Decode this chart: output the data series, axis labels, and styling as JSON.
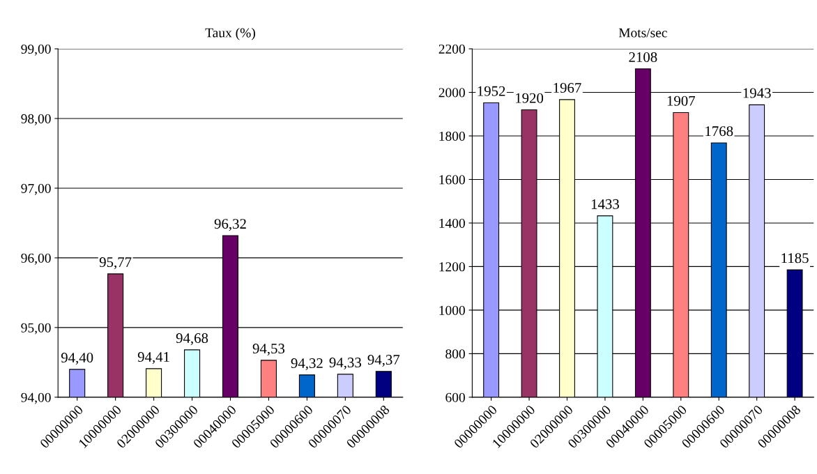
{
  "chart_data": [
    {
      "type": "bar",
      "title": "Taux (%)",
      "categories": [
        "00000000",
        "10000000",
        "02000000",
        "00300000",
        "00040000",
        "00005000",
        "00000600",
        "00000070",
        "00000008"
      ],
      "values": [
        94.4,
        95.77,
        94.41,
        94.68,
        96.32,
        94.53,
        94.32,
        94.33,
        94.37
      ],
      "value_labels": [
        "94,40",
        "95,77",
        "94,41",
        "94,68",
        "96,32",
        "94,53",
        "94,32",
        "94,33",
        "94,37"
      ],
      "colors": [
        "#9999ff",
        "#993366",
        "#ffffcc",
        "#ccffff",
        "#660066",
        "#ff8080",
        "#0066cc",
        "#ccccff",
        "#000080"
      ],
      "ylim": [
        94,
        99
      ],
      "yticks": [
        {
          "value": 94,
          "label": "94,00"
        },
        {
          "value": 95,
          "label": "95,00"
        },
        {
          "value": 96,
          "label": "96,00"
        },
        {
          "value": 97,
          "label": "97,00"
        },
        {
          "value": 98,
          "label": "98,00"
        },
        {
          "value": 99,
          "label": "99,00"
        }
      ],
      "grid": "y"
    },
    {
      "type": "bar",
      "title": "Mots/sec",
      "categories": [
        "00000000",
        "10000000",
        "02000000",
        "00300000",
        "00040000",
        "00005000",
        "00000600",
        "00000070",
        "00000008"
      ],
      "values": [
        1952,
        1920,
        1967,
        1433,
        2108,
        1907,
        1768,
        1943,
        1185
      ],
      "data_labels": true,
      "colors": [
        "#9999ff",
        "#993366",
        "#ffffcc",
        "#ccffff",
        "#660066",
        "#ff8080",
        "#0066cc",
        "#ccccff",
        "#000080"
      ],
      "ylim": [
        600,
        2200
      ],
      "yticks": [
        600,
        800,
        1000,
        1200,
        1400,
        1600,
        1800,
        2000,
        2200
      ],
      "grid": "y"
    }
  ]
}
